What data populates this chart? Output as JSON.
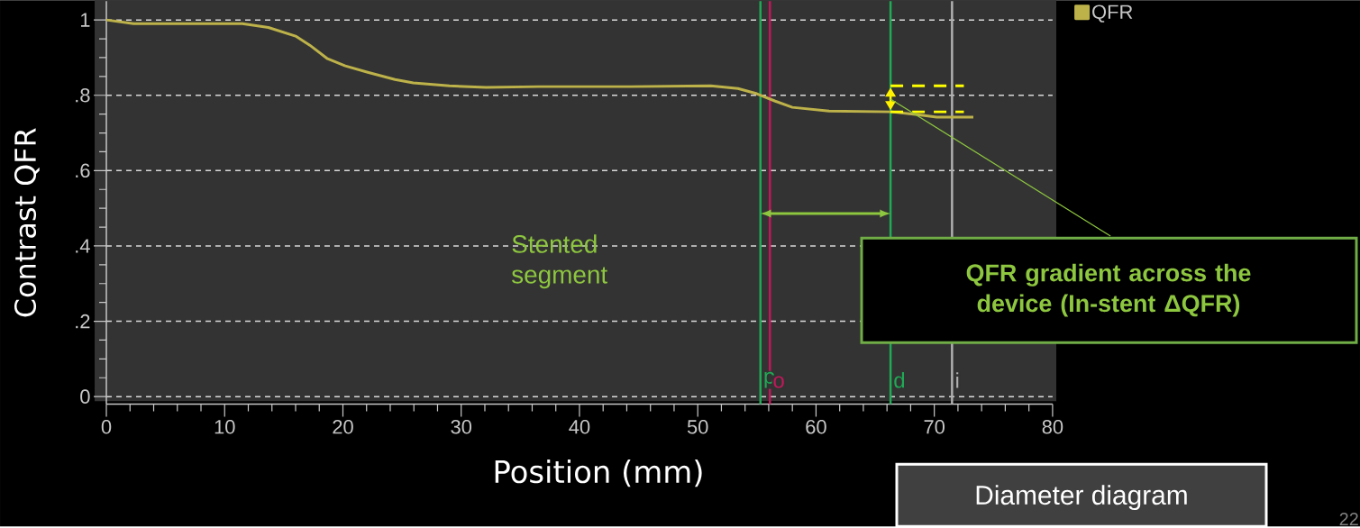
{
  "chart_data": {
    "type": "line",
    "xlabel": "Position (mm)",
    "ylabel": "Contrast QFR",
    "series": [
      {
        "name": "QFR",
        "color": "#bdb24a",
        "x": [
          0,
          2.3,
          11.5,
          13.7,
          16.0,
          17.2,
          18.7,
          20.2,
          22.1,
          24.4,
          25.95,
          29.0,
          32.1,
          36.6,
          44.3,
          51.1,
          53.4,
          55.0,
          56.5,
          58.0,
          61.1,
          66.4,
          67.9,
          70.2,
          73.3
        ],
        "values": [
          1.0,
          0.99,
          0.99,
          0.98,
          0.957,
          0.933,
          0.897,
          0.878,
          0.861,
          0.842,
          0.833,
          0.825,
          0.821,
          0.823,
          0.823,
          0.825,
          0.818,
          0.804,
          0.785,
          0.768,
          0.758,
          0.756,
          0.751,
          0.742,
          0.742
        ]
      },
      {
        "color": "#ffff00",
        "line_style": "dashed",
        "x": [
          66.3,
          72.5
        ],
        "values": [
          0.825,
          0.825
        ]
      },
      {
        "color": "#ffff00",
        "line_style": "dashed",
        "x": [
          66.3,
          72.5
        ],
        "values": [
          0.756,
          0.756
        ]
      }
    ],
    "xlim": [
      0,
      80
    ],
    "ylim": [
      -0.02,
      1.05
    ],
    "xticks": [
      0,
      10,
      20,
      30,
      40,
      50,
      60,
      70,
      80
    ],
    "yticks": [
      0,
      {
        "value": 0.2,
        "label": ".2"
      },
      {
        "value": 0.4,
        "label": ".4"
      },
      {
        "value": 0.6,
        "label": ".6"
      },
      {
        "value": 0.8,
        "label": ".8"
      },
      1
    ],
    "grid": "y",
    "legend": "top right",
    "ref_lines": [
      {
        "axis": "x",
        "value": 55.3,
        "label": "p",
        "color": "#1faa55"
      },
      {
        "axis": "x",
        "value": 56.1,
        "label": "o",
        "color": "#c0185a"
      },
      {
        "axis": "x",
        "value": 66.3,
        "label": "d",
        "color": "#1faa55"
      },
      {
        "axis": "x",
        "value": 71.5,
        "label": "i",
        "color": "#b0b0b0"
      }
    ],
    "annotations": [
      "Stented segment",
      {
        "text": "QFR gradient across the device (In-stent ΔQFR)",
        "x": 66.3,
        "y": 0.79
      },
      "Diameter diagram",
      "22"
    ]
  }
}
